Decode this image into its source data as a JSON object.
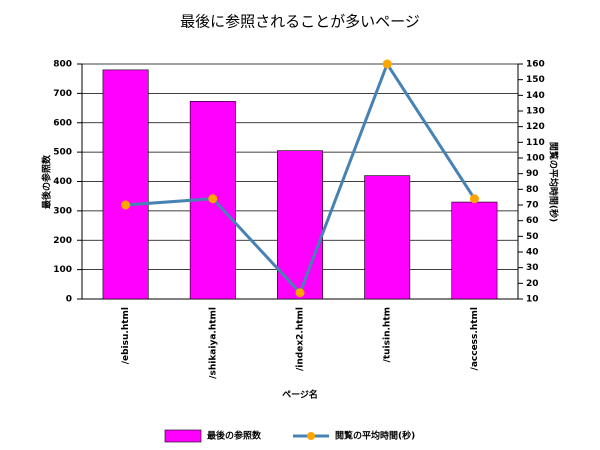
{
  "chart_data": {
    "type": "bar-line",
    "title": "最後に参照されることが多いページ",
    "x_label": "ページ名",
    "y_label": "最後の参照数",
    "y2_label": "閲覧の平均時間(秒)",
    "categories": [
      "/ebisu.html",
      "/shikaiya.html",
      "/index2.html",
      "/tuisin.htm",
      "/access.html"
    ],
    "series": [
      {
        "name": "最後の参照数",
        "type": "bar",
        "color": "#ff00ff",
        "values": [
          780,
          673,
          505,
          420,
          330
        ]
      },
      {
        "name": "閲覧の平均時間(秒)",
        "type": "line",
        "axis": "y2",
        "color": "#4682b4",
        "marker_color": "#ffa500",
        "values": [
          70,
          74,
          14,
          160,
          74
        ]
      }
    ],
    "ylim": [
      0,
      800
    ],
    "yticks": [
      0,
      100,
      200,
      300,
      400,
      500,
      600,
      700,
      800
    ],
    "y2lim": [
      10,
      160
    ],
    "y2ticks": [
      10,
      20,
      30,
      40,
      50,
      60,
      70,
      80,
      90,
      100,
      110,
      120,
      130,
      140,
      150,
      160
    ],
    "grid": true,
    "legend": "bottom"
  }
}
